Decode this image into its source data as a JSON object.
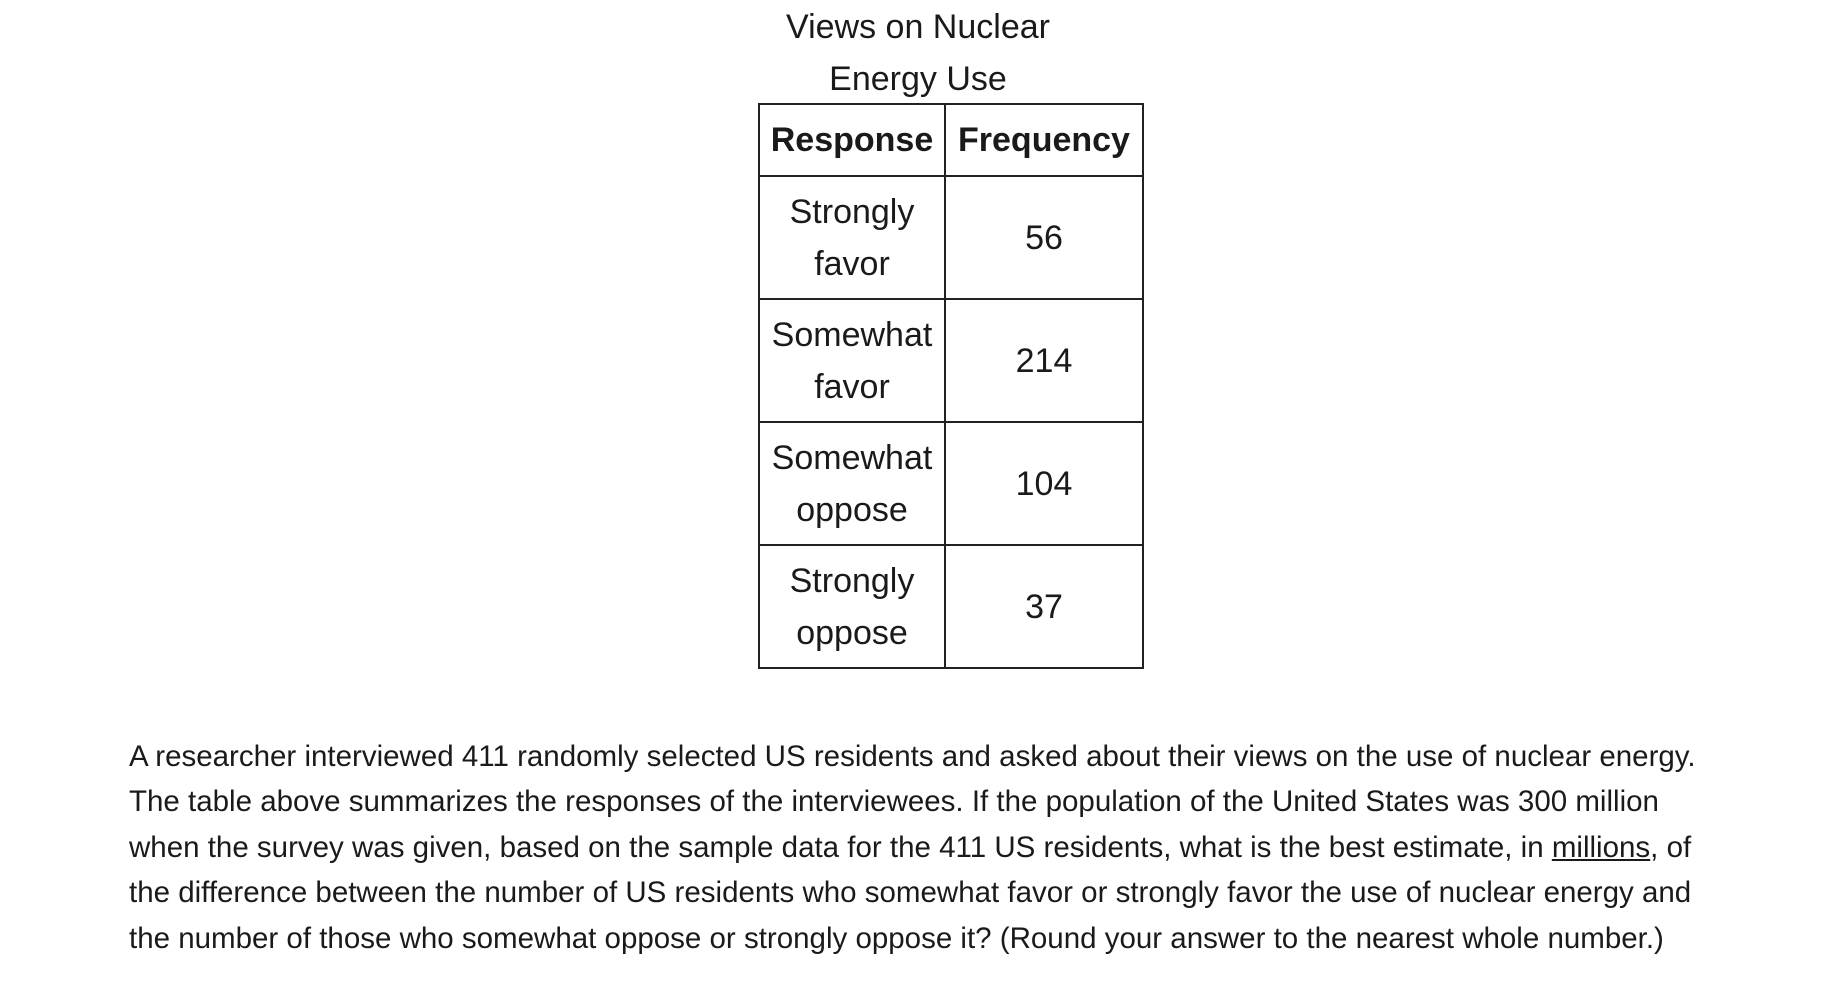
{
  "table": {
    "caption_lines": [
      "Views on Nuclear",
      "Energy Use"
    ],
    "headers": [
      "Response",
      "Frequency"
    ],
    "rows": [
      {
        "response_lines": [
          "Strongly",
          "favor"
        ],
        "frequency": "56"
      },
      {
        "response_lines": [
          "Somewhat",
          "favor"
        ],
        "frequency": "214"
      },
      {
        "response_lines": [
          "Somewhat",
          "oppose"
        ],
        "frequency": "104"
      },
      {
        "response_lines": [
          "Strongly",
          "oppose"
        ],
        "frequency": "37"
      }
    ]
  },
  "question": {
    "text_before": "A researcher interviewed 411 randomly selected US residents and asked about their views on the use of nuclear energy. The table above summarizes the responses of the interviewees. If the population of the United States was 300 million when the survey was given, based on the sample data for the 411 US residents, what is the best estimate, in ",
    "underlined": "millions",
    "text_after": ", of the difference between the number of US residents who somewhat favor or strongly favor the use of nuclear energy and the number of those who somewhat oppose or strongly oppose it? (Round your answer to the nearest whole number.)"
  }
}
